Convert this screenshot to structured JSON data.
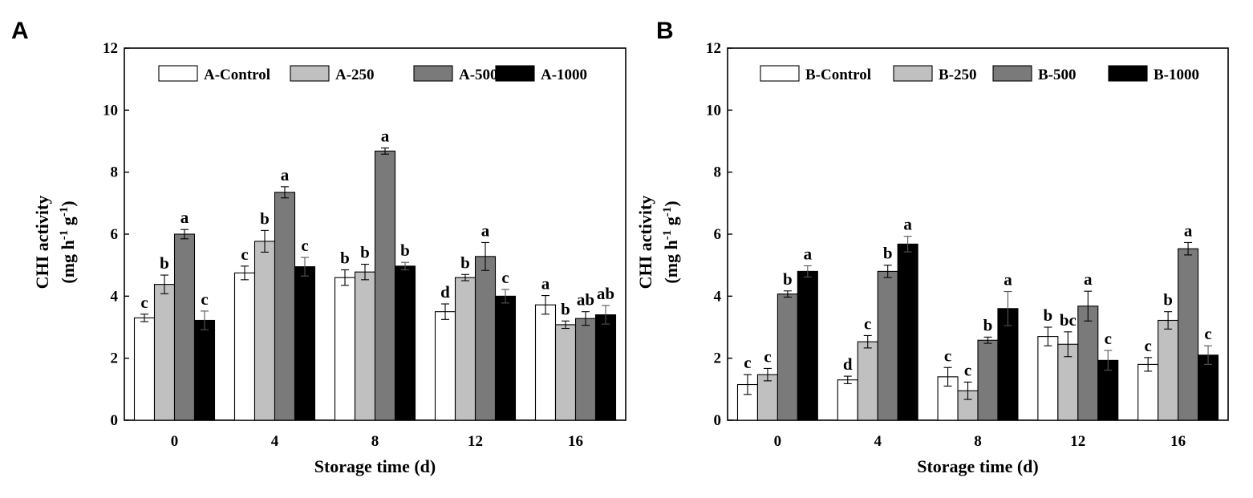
{
  "chart_data": [
    {
      "type": "bar",
      "panel_label": "A",
      "title": "",
      "xlabel": "Storage time (d)",
      "ylabel_line1": "CHI activity",
      "ylabel_line2_parts": [
        "(mg h",
        "-1",
        " g",
        "-1",
        ")"
      ],
      "ylim": [
        0,
        12
      ],
      "yticks": [
        0,
        2,
        4,
        6,
        8,
        10,
        12
      ],
      "categories": [
        "0",
        "4",
        "8",
        "12",
        "16"
      ],
      "legend_position": "top",
      "series": [
        {
          "name": "A-Control",
          "color": "#ffffff",
          "values": [
            3.3,
            4.75,
            4.6,
            3.5,
            3.72
          ],
          "errors": [
            0.12,
            0.22,
            0.25,
            0.25,
            0.3
          ],
          "letters": [
            "c",
            "c",
            "b",
            "d",
            "a"
          ]
        },
        {
          "name": "A-250",
          "color": "#c0c0c0",
          "values": [
            4.38,
            5.77,
            4.78,
            4.6,
            3.08
          ],
          "errors": [
            0.3,
            0.35,
            0.25,
            0.1,
            0.12
          ],
          "letters": [
            "b",
            "b",
            "b",
            "b",
            "b"
          ]
        },
        {
          "name": "A-500",
          "color": "#7a7a7a",
          "values": [
            6.0,
            7.35,
            8.68,
            5.28,
            3.28
          ],
          "errors": [
            0.15,
            0.18,
            0.1,
            0.45,
            0.22
          ],
          "letters": [
            "a",
            "a",
            "a",
            "a",
            "ab"
          ]
        },
        {
          "name": "A-1000",
          "color": "#000000",
          "values": [
            3.22,
            4.95,
            4.97,
            4.0,
            3.4
          ],
          "errors": [
            0.3,
            0.3,
            0.12,
            0.22,
            0.3
          ],
          "letters": [
            "c",
            "c",
            "b",
            "c",
            "ab"
          ]
        }
      ]
    },
    {
      "type": "bar",
      "panel_label": "B",
      "title": "",
      "xlabel": "Storage time (d)",
      "ylabel_line1": "CHI activity",
      "ylabel_line2_parts": [
        "(mg h",
        "-1",
        " g",
        "-1",
        ")"
      ],
      "ylim": [
        0,
        12
      ],
      "yticks": [
        0,
        2,
        4,
        6,
        8,
        10,
        12
      ],
      "categories": [
        "0",
        "4",
        "8",
        "12",
        "16"
      ],
      "legend_position": "top",
      "series": [
        {
          "name": "B-Control",
          "color": "#ffffff",
          "values": [
            1.15,
            1.3,
            1.4,
            2.7,
            1.8
          ],
          "errors": [
            0.32,
            0.12,
            0.3,
            0.3,
            0.22
          ],
          "letters": [
            "c",
            "d",
            "c",
            "b",
            "c"
          ]
        },
        {
          "name": "B-250",
          "color": "#c0c0c0",
          "values": [
            1.47,
            2.53,
            0.95,
            2.45,
            3.22
          ],
          "errors": [
            0.2,
            0.2,
            0.28,
            0.4,
            0.28
          ],
          "letters": [
            "c",
            "c",
            "c",
            "bc",
            "b"
          ]
        },
        {
          "name": "B-500",
          "color": "#7a7a7a",
          "values": [
            4.07,
            4.8,
            2.58,
            3.68,
            5.53
          ],
          "errors": [
            0.1,
            0.2,
            0.1,
            0.48,
            0.2
          ],
          "letters": [
            "b",
            "b",
            "b",
            "a",
            "a"
          ]
        },
        {
          "name": "B-1000",
          "color": "#000000",
          "values": [
            4.8,
            5.68,
            3.6,
            1.93,
            2.1
          ],
          "errors": [
            0.18,
            0.25,
            0.55,
            0.32,
            0.3
          ],
          "letters": [
            "a",
            "a",
            "a",
            "c",
            "c"
          ]
        }
      ]
    }
  ]
}
